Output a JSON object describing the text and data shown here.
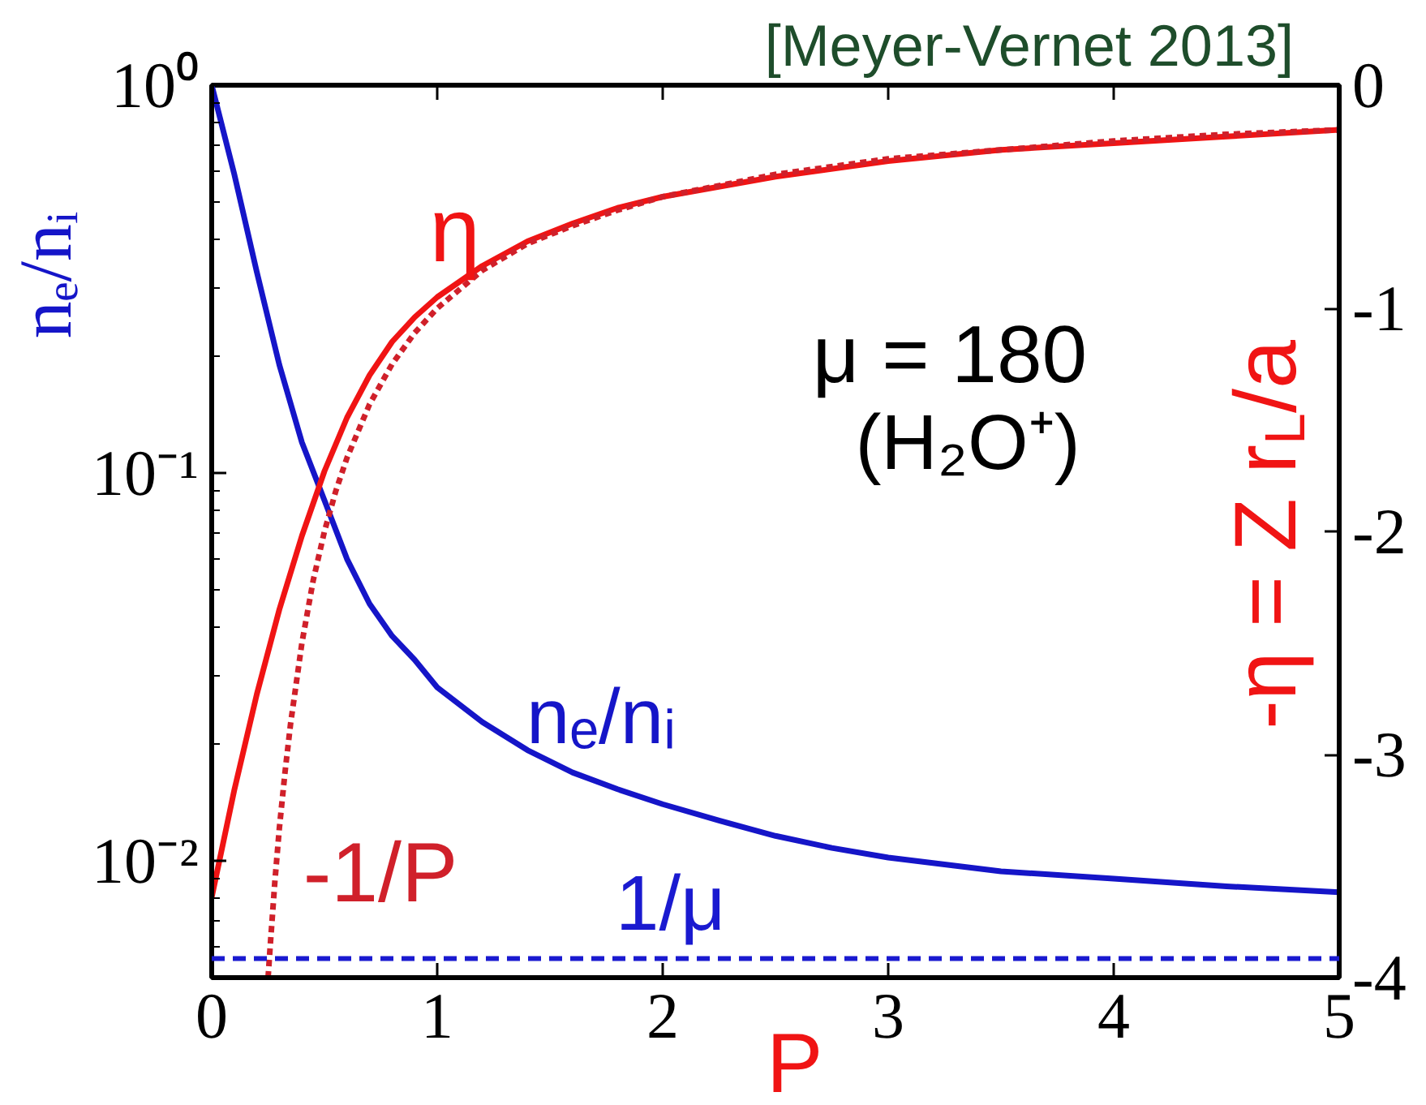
{
  "chart_data": {
    "type": "line",
    "xlabel": "P",
    "ylabel": "nₑ/nᵢ",
    "y2label": "-η = Z r$_{L}$/a",
    "annotations": [
      "[Meyer-Vernet 2013]",
      "μ = 180",
      "(H₂O⁺)"
    ],
    "xlim": [
      0,
      5
    ],
    "xticks": [
      0,
      1,
      2,
      3,
      4,
      5
    ],
    "ylim": [
      0.005,
      1
    ],
    "yticks": [
      {
        "value": 0.01,
        "label": "10⁻²"
      },
      {
        "value": 0.1,
        "label": "10⁻¹"
      },
      {
        "value": 1,
        "label": "10⁰"
      }
    ],
    "log": "y",
    "y2lim": [
      -4,
      0
    ],
    "y2ticks": [
      -4,
      -3,
      -2,
      -1,
      0
    ],
    "series": [
      {
        "name": "nₑ/nᵢ",
        "color": "#1515c8",
        "x": [
          0,
          0.1,
          0.2,
          0.3,
          0.4,
          0.5,
          0.6,
          0.7,
          0.8,
          0.9,
          1.0,
          1.2,
          1.4,
          1.6,
          1.8,
          2.0,
          2.25,
          2.5,
          2.75,
          3.0,
          3.5,
          4.0,
          4.5,
          5.0
        ],
        "values": [
          1,
          0.59,
          0.33,
          0.19,
          0.12,
          0.085,
          0.06,
          0.046,
          0.038,
          0.033,
          0.028,
          0.0228,
          0.0193,
          0.0169,
          0.0153,
          0.014,
          0.0127,
          0.0116,
          0.0108,
          0.0102,
          0.0094,
          0.009,
          0.0086,
          0.0083
        ]
      },
      {
        "name": "η",
        "color": "#f01414",
        "axis": "y2",
        "x": [
          0,
          0.1,
          0.2,
          0.3,
          0.4,
          0.5,
          0.6,
          0.7,
          0.8,
          0.9,
          1.0,
          1.2,
          1.4,
          1.6,
          1.8,
          2.0,
          2.5,
          3.0,
          3.5,
          4.0,
          4.5,
          5.0
        ],
        "values": [
          -3.64,
          -3.16,
          -2.73,
          -2.35,
          -2.02,
          -1.73,
          -1.49,
          -1.3,
          -1.15,
          -1.04,
          -0.95,
          -0.81,
          -0.7,
          -0.62,
          -0.55,
          -0.5,
          -0.41,
          -0.34,
          -0.29,
          -0.26,
          -0.23,
          -0.2
        ]
      },
      {
        "name": "-1/P",
        "color": "#d0202a",
        "axis": "y2",
        "line_style": "dotted",
        "x": [
          0.25,
          0.26,
          0.28,
          0.3,
          0.325,
          0.35,
          0.4,
          0.45,
          0.5,
          0.55,
          0.6,
          0.7,
          0.8,
          0.9,
          1.0,
          1.2,
          1.4,
          1.6,
          1.8,
          2.0,
          2.5,
          3.0,
          3.5,
          4.0,
          4.5,
          5.0
        ],
        "values": [
          -4,
          -3.85,
          -3.57,
          -3.33,
          -3.08,
          -2.86,
          -2.5,
          -2.22,
          -2,
          -1.82,
          -1.67,
          -1.43,
          -1.25,
          -1.11,
          -1,
          -0.83,
          -0.71,
          -0.63,
          -0.56,
          -0.5,
          -0.4,
          -0.33,
          -0.29,
          -0.25,
          -0.22,
          -0.2
        ]
      }
    ],
    "ref_lines": [
      {
        "axis": "y",
        "value": 0.0056,
        "label": "1/μ",
        "color": "#1a1ad0",
        "line_style": "dashed"
      }
    ]
  }
}
